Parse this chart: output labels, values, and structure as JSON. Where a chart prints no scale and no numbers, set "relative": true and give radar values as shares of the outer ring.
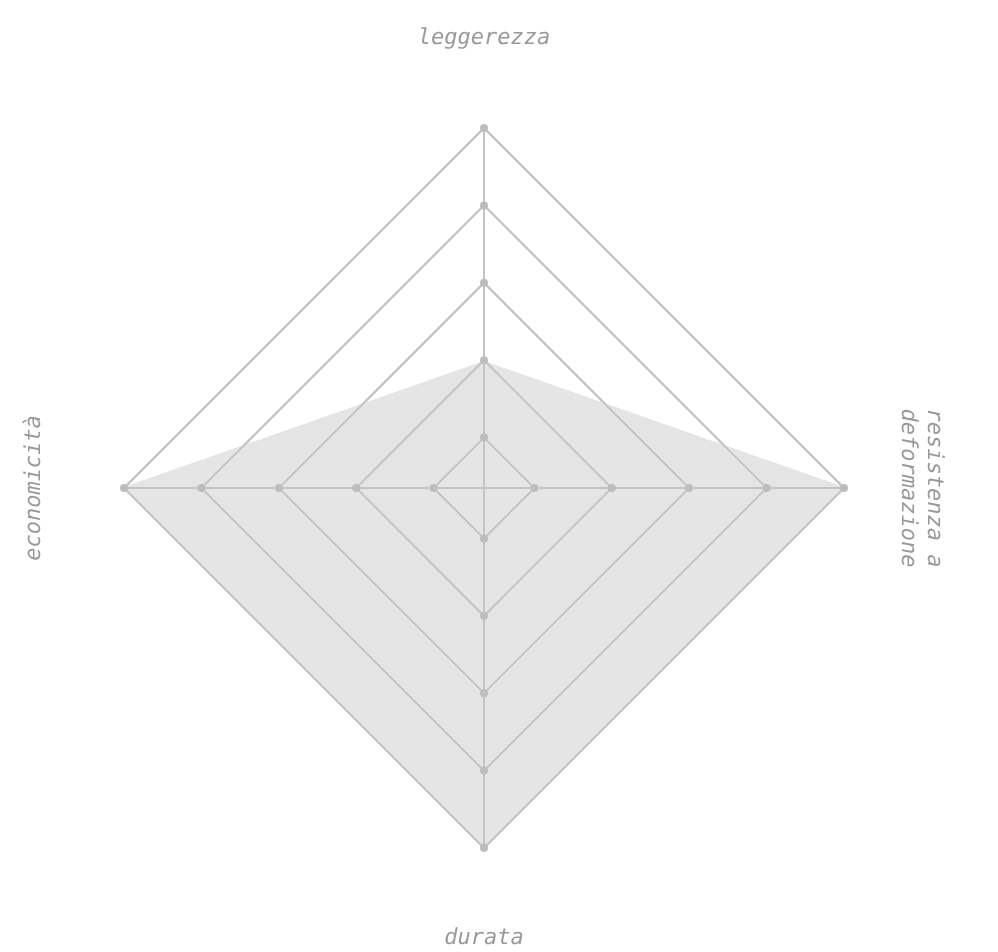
{
  "chart_data": {
    "type": "radar",
    "relative": true,
    "grid": true,
    "categories": [
      "leggerezza",
      "resistenza a\ndeformazione",
      "durata",
      "economicità"
    ],
    "series": [
      {
        "color": "#e5e5e5",
        "values": [
          0.35,
          1,
          1,
          1
        ]
      }
    ]
  }
}
